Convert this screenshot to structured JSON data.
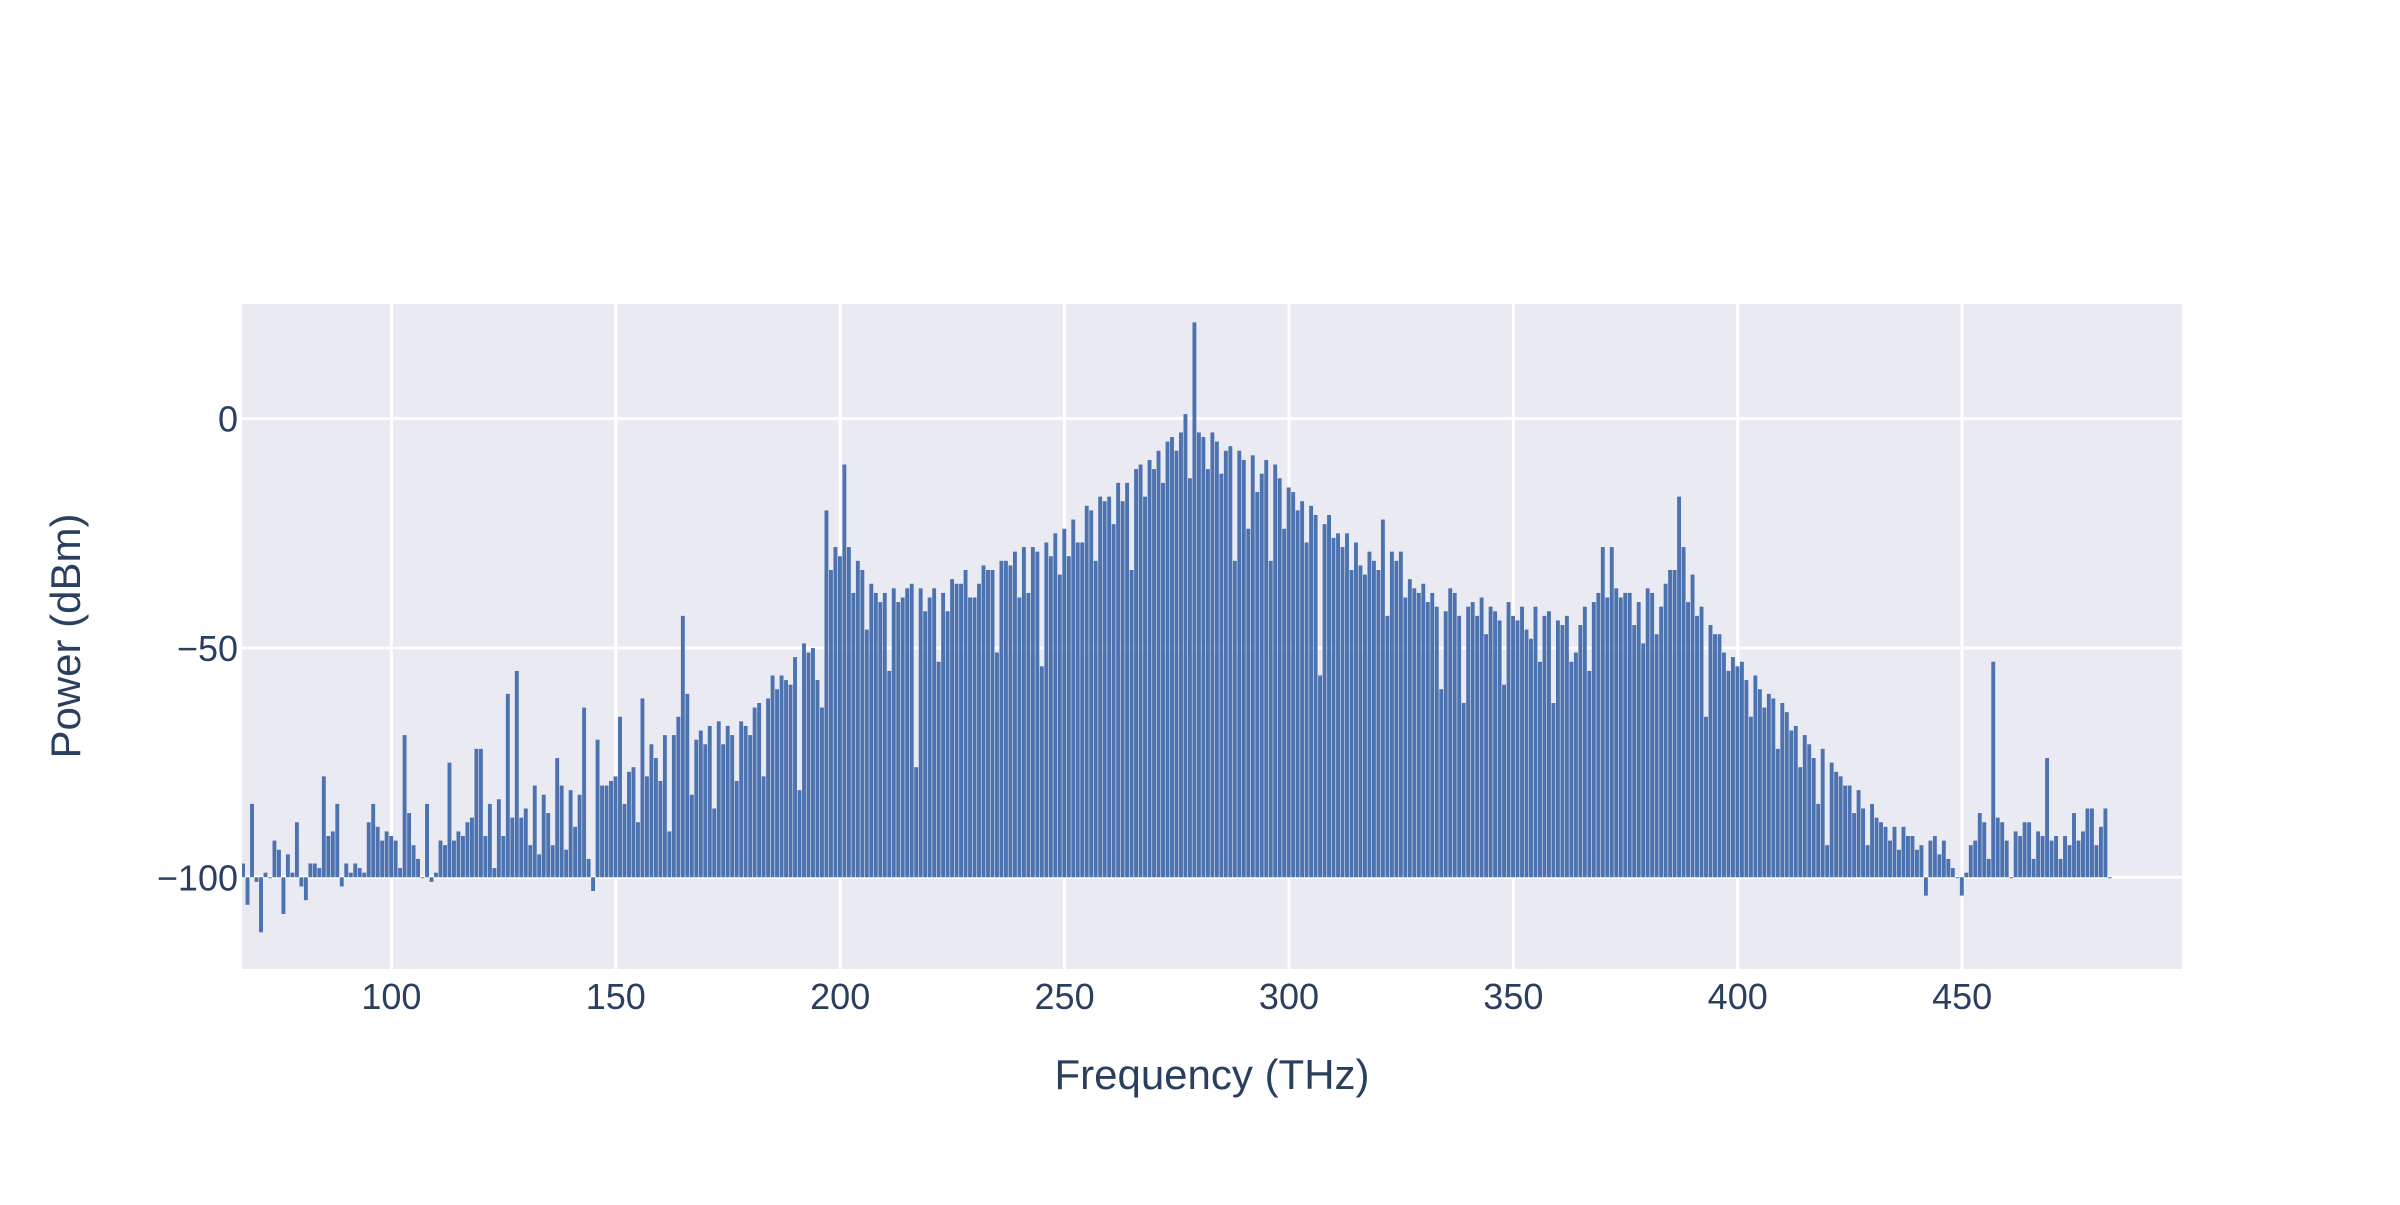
{
  "chart_data": {
    "type": "bar",
    "title": "",
    "xlabel": "Frequency (THz)",
    "ylabel": "Power (dBm)",
    "xlim": [
      66.7,
      499.0
    ],
    "ylim": [
      -120,
      25
    ],
    "baseline": -100,
    "bar_width": 1.0,
    "grid": true,
    "legend": "none",
    "colors": {
      "bar": "#4c72b0",
      "plot_bg": "#eaeaf2",
      "grid": "#ffffff",
      "text": "#2a3f5f"
    },
    "x_ticks": [
      100,
      150,
      200,
      250,
      300,
      350,
      400,
      450
    ],
    "x_tick_labels": [
      "100",
      "150",
      "200",
      "250",
      "300",
      "350",
      "400",
      "450"
    ],
    "y_ticks": [
      0,
      -50,
      -100
    ],
    "y_tick_labels": [
      "0",
      "−50",
      "−100"
    ],
    "series": [
      {
        "x_start": 67,
        "x_step": 1,
        "values": [
          -97,
          -106,
          -84,
          -101,
          -112,
          -99,
          -100,
          -92,
          -94,
          -108,
          -95,
          -99,
          -88,
          -102,
          -105,
          -97,
          -97,
          -98,
          -78,
          -91,
          -90,
          -84,
          -102,
          -97,
          -99,
          -97,
          -98,
          -99,
          -88,
          -84,
          -89,
          -92,
          -90,
          -91,
          -92,
          -98,
          -69,
          -86,
          -93,
          -96,
          -100,
          -84,
          -101,
          -99,
          -92,
          -93,
          -75,
          -92,
          -90,
          -91,
          -88,
          -87,
          -72,
          -72,
          -91,
          -84,
          -98,
          -83,
          -91,
          -60,
          -87,
          -55,
          -87,
          -85,
          -93,
          -80,
          -95,
          -82,
          -86,
          -93,
          -74,
          -80,
          -94,
          -81,
          -89,
          -82,
          -63,
          -96,
          -103,
          -70,
          -80,
          -80,
          -79,
          -78,
          -65,
          -84,
          -77,
          -76,
          -88,
          -61,
          -78,
          -71,
          -74,
          -79,
          -69,
          -90,
          -69,
          -65,
          -43,
          -60,
          -82,
          -70,
          -68,
          -71,
          -67,
          -85,
          -66,
          -71,
          -67,
          -69,
          -79,
          -66,
          -67,
          -69,
          -63,
          -62,
          -78,
          -61,
          -56,
          -59,
          -56,
          -57,
          -58,
          -52,
          -81,
          -49,
          -51,
          -50,
          -57,
          -63,
          -20,
          -33,
          -28,
          -30,
          -10,
          -28,
          -38,
          -31,
          -33,
          -46,
          -36,
          -38,
          -40,
          -38,
          -55,
          -37,
          -40,
          -39,
          -37,
          -36,
          -76,
          -37,
          -42,
          -39,
          -37,
          -53,
          -38,
          -42,
          -35,
          -36,
          -36,
          -33,
          -39,
          -39,
          -36,
          -32,
          -33,
          -33,
          -51,
          -31,
          -31,
          -32,
          -29,
          -39,
          -28,
          -38,
          -28,
          -29,
          -54,
          -27,
          -30,
          -25,
          -34,
          -24,
          -30,
          -22,
          -27,
          -27,
          -19,
          -20,
          -31,
          -17,
          -18,
          -17,
          -23,
          -14,
          -18,
          -14,
          -33,
          -11,
          -10,
          -17,
          -9,
          -11,
          -7,
          -14,
          -5,
          -4,
          -7,
          -3,
          1,
          -13,
          21,
          -3,
          -4,
          -11,
          -3,
          -5,
          -12,
          -7,
          -6,
          -31,
          -7,
          -9,
          -24,
          -8,
          -16,
          -12,
          -9,
          -31,
          -10,
          -13,
          -24,
          -15,
          -16,
          -20,
          -18,
          -27,
          -19,
          -21,
          -56,
          -23,
          -21,
          -26,
          -25,
          -28,
          -25,
          -33,
          -27,
          -32,
          -34,
          -29,
          -31,
          -33,
          -22,
          -43,
          -29,
          -31,
          -29,
          -39,
          -35,
          -37,
          -38,
          -36,
          -40,
          -38,
          -41,
          -59,
          -42,
          -37,
          -38,
          -43,
          -62,
          -41,
          -40,
          -43,
          -39,
          -47,
          -41,
          -42,
          -44,
          -58,
          -40,
          -43,
          -44,
          -41,
          -46,
          -48,
          -41,
          -53,
          -43,
          -42,
          -62,
          -44,
          -45,
          -43,
          -53,
          -51,
          -45,
          -41,
          -55,
          -40,
          -38,
          -28,
          -39,
          -28,
          -37,
          -39,
          -38,
          -38,
          -45,
          -40,
          -49,
          -37,
          -38,
          -47,
          -41,
          -36,
          -33,
          -33,
          -17,
          -28,
          -40,
          -34,
          -43,
          -41,
          -65,
          -45,
          -47,
          -47,
          -51,
          -55,
          -52,
          -54,
          -53,
          -57,
          -65,
          -56,
          -59,
          -63,
          -60,
          -61,
          -72,
          -62,
          -64,
          -68,
          -67,
          -76,
          -69,
          -71,
          -74,
          -84,
          -72,
          -93,
          -75,
          -77,
          -78,
          -80,
          -80,
          -86,
          -81,
          -85,
          -93,
          -84,
          -87,
          -88,
          -89,
          -92,
          -89,
          -94,
          -89,
          -91,
          -91,
          -94,
          -93,
          -104,
          -92,
          -91,
          -95,
          -92,
          -96,
          -98,
          -100,
          -104,
          -99,
          -93,
          -92,
          -86,
          -88,
          -96,
          -53,
          -87,
          -88,
          -92,
          -100,
          -90,
          -91,
          -88,
          -88,
          -96,
          -90,
          -91,
          -74,
          -92,
          -91,
          -96,
          -91,
          -93,
          -86,
          -92,
          -90,
          -85,
          -85,
          -93,
          -89,
          -85,
          -100
        ]
      }
    ]
  }
}
